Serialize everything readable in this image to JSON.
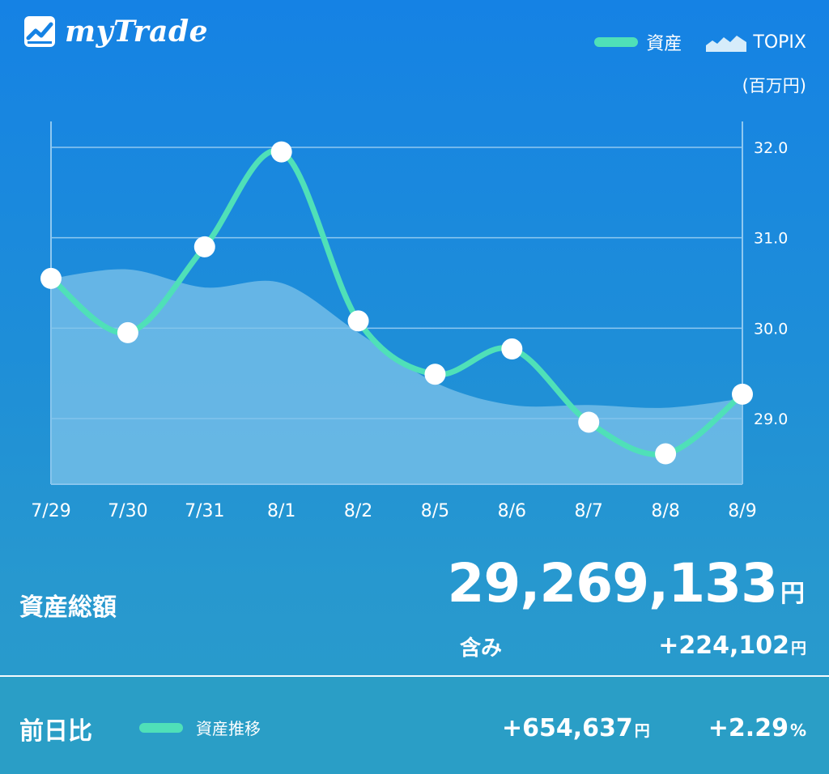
{
  "app": {
    "title": "myTrade"
  },
  "legend": {
    "asset_label": "資産",
    "topix_label": "TOPIX",
    "unit": "(百万円)"
  },
  "summary": {
    "total_label": "資産総額",
    "total_value": "29,269,133",
    "total_unit": "円",
    "included_label": "含み",
    "included_value": "+224,102",
    "included_unit": "円"
  },
  "footer": {
    "prev_day_label": "前日比",
    "legend_label": "資産推移",
    "diff_value": "+654,637",
    "diff_unit": "円",
    "pct_value": "+2.29",
    "pct_unit": "%"
  },
  "colors": {
    "asset_line": "#4fe0b8",
    "topix_area": "#7ec3ea",
    "background_top": "#1582e4",
    "background_bottom": "#2a9cc9",
    "grid": "#8fc8f0",
    "point": "#ffffff"
  },
  "chart_data": {
    "type": "line",
    "x": [
      "7/29",
      "7/30",
      "7/31",
      "8/1",
      "8/2",
      "8/5",
      "8/6",
      "8/7",
      "8/8",
      "8/9"
    ],
    "series": [
      {
        "name": "資産",
        "kind": "line",
        "values": [
          30.55,
          29.95,
          30.9,
          31.95,
          30.08,
          29.49,
          29.77,
          28.96,
          28.61,
          29.27
        ]
      },
      {
        "name": "TOPIX",
        "kind": "area",
        "values": [
          30.55,
          30.65,
          30.45,
          30.5,
          29.95,
          29.4,
          29.15,
          29.15,
          29.12,
          29.22
        ]
      }
    ],
    "yticks": [
      "32.0",
      "31.0",
      "30.0",
      "29.0"
    ],
    "ylim": [
      28.2,
      32.3
    ],
    "y_axis_side": "right",
    "grid": true,
    "legend_position": "top-right"
  }
}
